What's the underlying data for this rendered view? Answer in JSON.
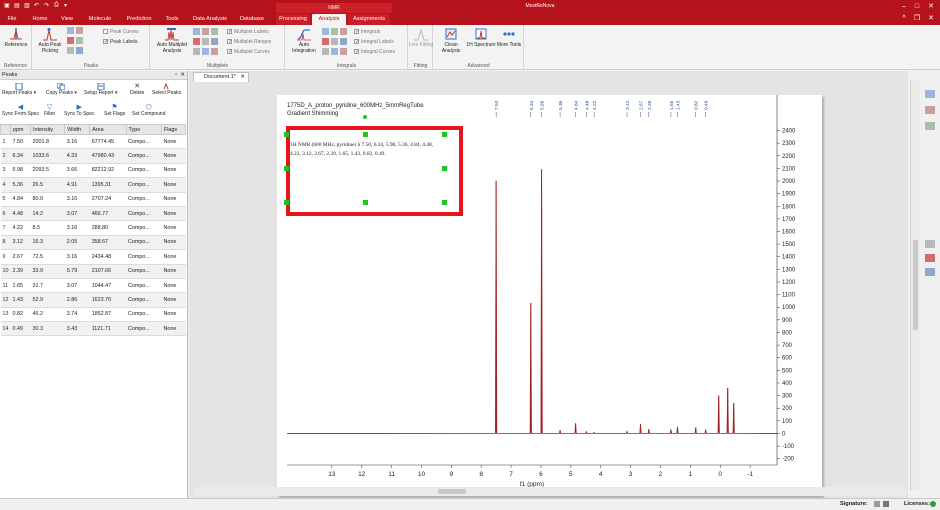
{
  "window": {
    "title": "MestReNova",
    "quick_access": [
      "File"
    ],
    "context_tab_group": "NMR"
  },
  "tabs": [
    {
      "label": "File"
    },
    {
      "label": "Home"
    },
    {
      "label": "View"
    },
    {
      "label": "Molecule"
    },
    {
      "label": "Prediction"
    },
    {
      "label": "Tools"
    },
    {
      "label": "Data Analysis"
    },
    {
      "label": "Database"
    },
    {
      "label": "Processing"
    },
    {
      "label": "Analysis"
    },
    {
      "label": "Assignments"
    }
  ],
  "ribbon": {
    "groups": {
      "reference": "Reference",
      "peaks": "Peaks",
      "multiplets": "Multiplets",
      "integrals": "Integrals",
      "fitting": "Fitting",
      "advanced": "Advanced"
    },
    "buttons": {
      "reference": "Reference",
      "auto_peak_picking": "Auto Peak Picking",
      "auto_multiplet": "Auto Multiplet Analysis",
      "auto_integration": "Auto Integration",
      "line_fitting": "Line Fitting",
      "clean_analysis": "Clean Analysis",
      "spectrum_1h": "1H Spectrum",
      "more_tools": "More Tools"
    },
    "checks": {
      "peak_curves": "Peak Curves",
      "peak_labels": "Peak Labels",
      "multiplet_labels": "Multiplet Labels",
      "multiplet_ranges": "Multiplet Ranges",
      "multiplet_curves": "Multiplet Curves",
      "integrals": "Integrals",
      "integral_labels": "Integral Labels",
      "integral_curves": "Integral Curves"
    }
  },
  "peaks_panel": {
    "title": "Peaks",
    "toolbar": {
      "report": "Report Peaks",
      "copy": "Copy Peaks",
      "setup": "Setup Report",
      "delete": "Delete",
      "select": "Select Peaks",
      "sync_from": "Sync From Spec",
      "filter": "Filter",
      "sync_to": "Sync To Spec",
      "set_flags": "Set Flags",
      "set_compound": "Set Compound"
    },
    "columns": [
      "ppm",
      "Intensity",
      "Width",
      "Area",
      "Type",
      "Flags"
    ],
    "rows": [
      [
        "1",
        "7.50",
        "2001.8",
        "3.16",
        "67774.45",
        "Compo...",
        "None"
      ],
      [
        "2",
        "6.34",
        "1033.6",
        "4.33",
        "47980.43",
        "Compo...",
        "None"
      ],
      [
        "3",
        "5.98",
        "2093.5",
        "3.66",
        "82212.92",
        "Compo...",
        "None"
      ],
      [
        "4",
        "5.36",
        "26.5",
        "4.91",
        "1395.31",
        "Compo...",
        "None"
      ],
      [
        "5",
        "4.84",
        "80.0",
        "3.16",
        "2707.24",
        "Compo...",
        "None"
      ],
      [
        "6",
        "4.48",
        "14.2",
        "3.07",
        "466.77",
        "Compo...",
        "None"
      ],
      [
        "7",
        "4.22",
        "8.5",
        "3.16",
        "288.80",
        "Compo...",
        "None"
      ],
      [
        "8",
        "3.12",
        "16.3",
        "2.05",
        "358.67",
        "Compo...",
        "None"
      ],
      [
        "9",
        "2.67",
        "72.5",
        "3.16",
        "2434.48",
        "Compo...",
        "None"
      ],
      [
        "10",
        "2.39",
        "33.9",
        "5.79",
        "2107.66",
        "Compo...",
        "None"
      ],
      [
        "11",
        "1.65",
        "31.7",
        "3.07",
        "1044.47",
        "Compo...",
        "None"
      ],
      [
        "12",
        "1.43",
        "52.9",
        "2.86",
        "1623.70",
        "Compo...",
        "None"
      ],
      [
        "13",
        "0.82",
        "46.2",
        "3.74",
        "1852.87",
        "Compo...",
        "None"
      ],
      [
        "14",
        "0.49",
        "30.3",
        "3.43",
        "1121.71",
        "Compo...",
        "None"
      ]
    ]
  },
  "document": {
    "tab_label": "Document 1*",
    "spectrum_title_line1": "1775D_A_proton_pyridine_600MHz_5mmRegTube",
    "spectrum_title_line2": "Gradient Shimming",
    "report_text": "1H NMR (600 MHz, pyridine) δ 7.50, 6.34, 5.98, 5.36, 4.84, 4.48, 4.22, 3.12, 2.67, 2.39, 1.65, 1.43, 0.82, 0.49.",
    "peak_labels": [
      "7.50",
      "6.34",
      "5.98",
      "5.36",
      "4.84",
      "4.48",
      "4.22",
      "3.12",
      "2.67",
      "2.39",
      "1.65",
      "1.43",
      "0.82",
      "0.49"
    ]
  },
  "chart_data": {
    "type": "line",
    "xlabel": "f1 (ppm)",
    "ylabel": "",
    "xlim": [
      14.5,
      -1.9
    ],
    "ylim": [
      -250,
      2420
    ],
    "x_ticks": [
      13,
      12,
      11,
      10,
      9,
      8,
      7,
      6,
      5,
      4,
      3,
      2,
      1,
      0,
      -1
    ],
    "y_ticks": [
      -200,
      -100,
      0,
      100,
      200,
      300,
      400,
      500,
      600,
      700,
      800,
      900,
      1000,
      1100,
      1200,
      1300,
      1400,
      1500,
      1600,
      1700,
      1800,
      1900,
      2000,
      2100,
      2200,
      2300,
      2400
    ],
    "peaks": [
      {
        "ppm": 7.5,
        "intensity": 2001.8
      },
      {
        "ppm": 6.34,
        "intensity": 1033.6
      },
      {
        "ppm": 5.98,
        "intensity": 2093.5
      },
      {
        "ppm": 5.36,
        "intensity": 26.5
      },
      {
        "ppm": 4.84,
        "intensity": 80.0
      },
      {
        "ppm": 4.48,
        "intensity": 14.2
      },
      {
        "ppm": 4.22,
        "intensity": 8.5
      },
      {
        "ppm": 3.12,
        "intensity": 16.3
      },
      {
        "ppm": 2.67,
        "intensity": 72.5
      },
      {
        "ppm": 2.39,
        "intensity": 33.9
      },
      {
        "ppm": 1.65,
        "intensity": 31.7
      },
      {
        "ppm": 1.43,
        "intensity": 52.9
      },
      {
        "ppm": 0.82,
        "intensity": 46.2
      },
      {
        "ppm": 0.49,
        "intensity": 30.3
      },
      {
        "ppm": 0.05,
        "intensity": 300
      },
      {
        "ppm": -0.25,
        "intensity": 360
      },
      {
        "ppm": -0.45,
        "intensity": 240
      }
    ],
    "line_color": "#a32020"
  },
  "status": {
    "signature": "Signature:",
    "licenses": "Licenses:"
  }
}
